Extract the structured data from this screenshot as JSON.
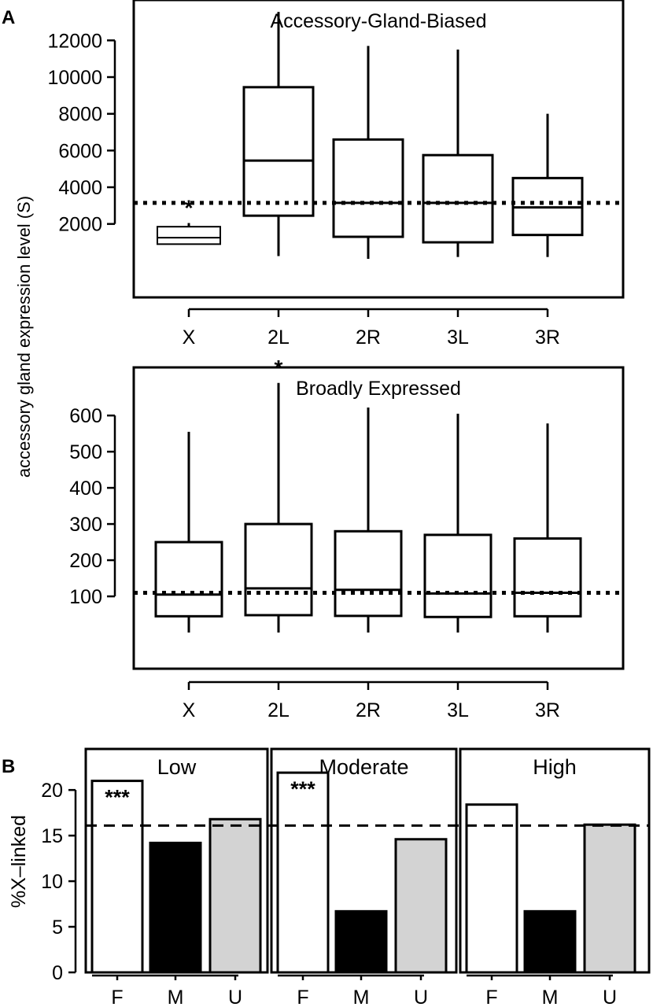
{
  "chart_data": [
    {
      "type": "boxplot",
      "panel": "A",
      "title": "Accessory-Gland-Biased",
      "ylabel": "accessory gland expression level (S)",
      "categories": [
        "X",
        "2L",
        "2R",
        "3L",
        "3R"
      ],
      "y_ticks": [
        2000,
        4000,
        6000,
        8000,
        10000,
        12000
      ],
      "ylim": [
        -2000,
        14200
      ],
      "reference_line": 3150,
      "boxes": [
        {
          "category": "X",
          "whisker_low": 900,
          "q1": 900,
          "median": 1250,
          "q3": 1850,
          "whisker_high": 2050
        },
        {
          "category": "2L",
          "whisker_low": 250,
          "q1": 2450,
          "median": 5450,
          "q3": 9450,
          "whisker_high": 13550
        },
        {
          "category": "2R",
          "whisker_low": 100,
          "q1": 1300,
          "median": 3150,
          "q3": 6600,
          "whisker_high": 11700
        },
        {
          "category": "3L",
          "whisker_low": 200,
          "q1": 1000,
          "median": 3150,
          "q3": 5750,
          "whisker_high": 11500
        },
        {
          "category": "3R",
          "whisker_low": 200,
          "q1": 1400,
          "median": 2900,
          "q3": 4500,
          "whisker_high": 8000
        }
      ],
      "annotations": [
        {
          "category": "X",
          "text": "*"
        },
        {
          "category": "2L",
          "text": "**"
        }
      ]
    },
    {
      "type": "boxplot",
      "panel": "A",
      "title": "Broadly Expressed",
      "categories": [
        "X",
        "2L",
        "2R",
        "3L",
        "3R"
      ],
      "y_ticks": [
        100,
        200,
        300,
        400,
        500,
        600
      ],
      "ylim": [
        -100,
        733
      ],
      "reference_line": 110,
      "boxes": [
        {
          "category": "X",
          "whisker_low": 0,
          "q1": 45,
          "median": 105,
          "q3": 250,
          "whisker_high": 555
        },
        {
          "category": "2L",
          "whisker_low": 0,
          "q1": 48,
          "median": 122,
          "q3": 300,
          "whisker_high": 690
        },
        {
          "category": "2R",
          "whisker_low": 0,
          "q1": 46,
          "median": 118,
          "q3": 280,
          "whisker_high": 622
        },
        {
          "category": "3L",
          "whisker_low": 0,
          "q1": 43,
          "median": 108,
          "q3": 270,
          "whisker_high": 605
        },
        {
          "category": "3R",
          "whisker_low": 0,
          "q1": 45,
          "median": 110,
          "q3": 260,
          "whisker_high": 578
        }
      ],
      "annotations": [
        {
          "category": "2L",
          "text": "*"
        }
      ]
    },
    {
      "type": "bar",
      "panel": "B",
      "ylabel": "%X–linked",
      "ylim": [
        0,
        24.5
      ],
      "y_ticks": [
        0,
        5,
        10,
        15,
        20
      ],
      "reference_line": 16.1,
      "categories": [
        "F",
        "M",
        "U"
      ],
      "category_colors": [
        "#ffffff",
        "#000000",
        "#d3d3d3"
      ],
      "subpanels": [
        {
          "title": "Low",
          "values": [
            21.0,
            14.2,
            16.8
          ],
          "labels": [
            "***",
            "***",
            ""
          ]
        },
        {
          "title": "Moderate",
          "values": [
            21.9,
            6.7,
            14.6
          ],
          "labels": [
            "***",
            "***",
            ""
          ]
        },
        {
          "title": "High",
          "values": [
            18.4,
            6.7,
            16.2
          ],
          "labels": [
            "",
            "***",
            ""
          ]
        }
      ]
    }
  ],
  "panel_labels": {
    "a": "A",
    "b": "B"
  }
}
